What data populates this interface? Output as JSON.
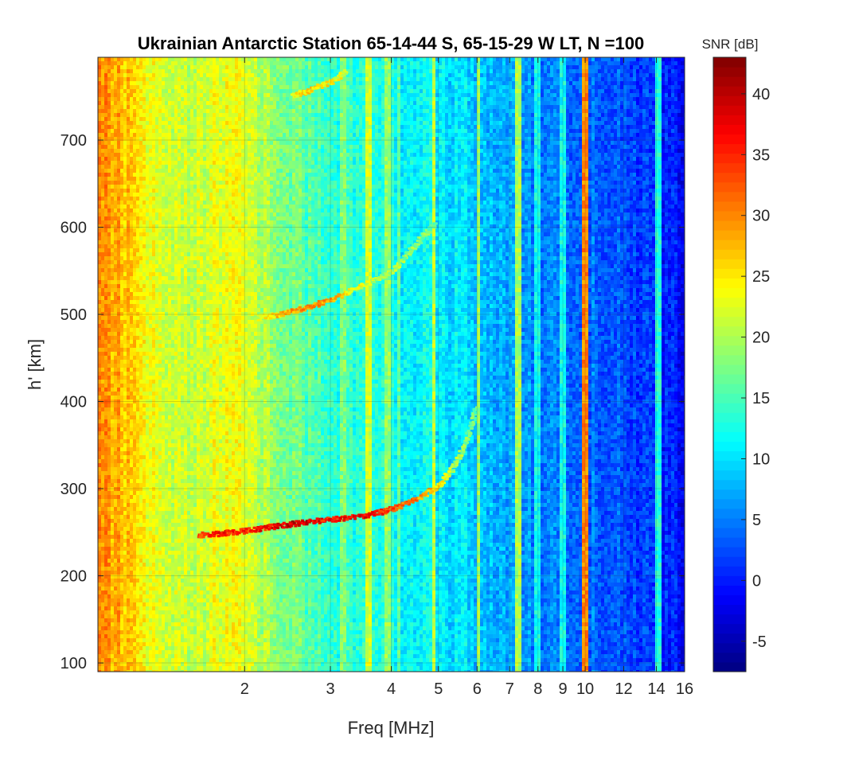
{
  "chart_data": {
    "type": "heatmap",
    "title": "Ukrainian Antarctic Station 65-14-44 S, 65-15-29 W LT, N =100",
    "xlabel": "Freq [MHz]",
    "ylabel": "h' [km]",
    "x_scale": "log",
    "xlim": [
      1.0,
      16
    ],
    "ylim": [
      90,
      795
    ],
    "x_ticks": [
      2,
      3,
      4,
      5,
      6,
      7,
      8,
      9,
      10,
      12,
      14,
      16
    ],
    "y_ticks": [
      100,
      200,
      300,
      400,
      500,
      600,
      700
    ],
    "colorbar": {
      "label": "SNR [dB]",
      "range": [
        -7.5,
        43
      ],
      "ticks": [
        -5,
        0,
        5,
        10,
        15,
        20,
        25,
        30,
        35,
        40
      ],
      "colormap": "jet"
    },
    "grid": true,
    "noise_background": [
      {
        "freq": 1.0,
        "snr": 30
      },
      {
        "freq": 1.15,
        "snr": 27
      },
      {
        "freq": 1.3,
        "snr": 23
      },
      {
        "freq": 1.55,
        "snr": 21
      },
      {
        "freq": 1.9,
        "snr": 24
      },
      {
        "freq": 2.1,
        "snr": 21
      },
      {
        "freq": 2.5,
        "snr": 17
      },
      {
        "freq": 3.0,
        "snr": 14
      },
      {
        "freq": 4.0,
        "snr": 12
      },
      {
        "freq": 5.0,
        "snr": 11
      },
      {
        "freq": 6.0,
        "snr": 9
      },
      {
        "freq": 7.5,
        "snr": 6
      },
      {
        "freq": 9.0,
        "snr": 5
      },
      {
        "freq": 11.0,
        "snr": 4
      },
      {
        "freq": 13.0,
        "snr": 2
      },
      {
        "freq": 15.0,
        "snr": 0
      },
      {
        "freq": 16.0,
        "snr": -2
      }
    ],
    "interference_lines": [
      {
        "freq": 1.95,
        "snr": 24
      },
      {
        "freq": 3.2,
        "snr": 18
      },
      {
        "freq": 3.6,
        "snr": 22
      },
      {
        "freq": 3.95,
        "snr": 19
      },
      {
        "freq": 4.15,
        "snr": 16
      },
      {
        "freq": 4.9,
        "snr": 21
      },
      {
        "freq": 6.05,
        "snr": 19
      },
      {
        "freq": 7.3,
        "snr": 20
      },
      {
        "freq": 8.0,
        "snr": 12
      },
      {
        "freq": 9.0,
        "snr": 12
      },
      {
        "freq": 10.0,
        "snr": 30
      },
      {
        "freq": 14.2,
        "snr": 13
      }
    ],
    "series": [
      {
        "points": [
          {
            "freq": 1.6,
            "h": 248,
            "snr": 34
          },
          {
            "freq": 1.8,
            "h": 250,
            "snr": 36
          },
          {
            "freq": 2.0,
            "h": 253,
            "snr": 34
          },
          {
            "freq": 2.3,
            "h": 258,
            "snr": 38
          },
          {
            "freq": 2.6,
            "h": 262,
            "snr": 40
          },
          {
            "freq": 3.0,
            "h": 266,
            "snr": 35
          },
          {
            "freq": 3.5,
            "h": 270,
            "snr": 38
          },
          {
            "freq": 4.0,
            "h": 278,
            "snr": 33
          },
          {
            "freq": 4.5,
            "h": 290,
            "snr": 30
          },
          {
            "freq": 5.0,
            "h": 305,
            "snr": 25
          },
          {
            "freq": 5.4,
            "h": 330,
            "snr": 20
          },
          {
            "freq": 5.7,
            "h": 360,
            "snr": 18
          },
          {
            "freq": 5.95,
            "h": 395,
            "snr": 16
          }
        ]
      },
      {
        "points": [
          {
            "freq": 2.1,
            "h": 497,
            "snr": 22
          },
          {
            "freq": 2.4,
            "h": 502,
            "snr": 28
          },
          {
            "freq": 2.7,
            "h": 510,
            "snr": 30
          },
          {
            "freq": 3.0,
            "h": 518,
            "snr": 28
          },
          {
            "freq": 3.5,
            "h": 535,
            "snr": 22
          },
          {
            "freq": 4.0,
            "h": 550,
            "snr": 20
          },
          {
            "freq": 4.3,
            "h": 570,
            "snr": 19
          },
          {
            "freq": 4.6,
            "h": 590,
            "snr": 18
          },
          {
            "freq": 4.9,
            "h": 605,
            "snr": 17
          }
        ]
      },
      {
        "points": [
          {
            "freq": 2.5,
            "h": 753,
            "snr": 24
          },
          {
            "freq": 2.7,
            "h": 758,
            "snr": 26
          },
          {
            "freq": 3.0,
            "h": 768,
            "snr": 24
          },
          {
            "freq": 3.2,
            "h": 780,
            "snr": 22
          }
        ]
      }
    ]
  }
}
